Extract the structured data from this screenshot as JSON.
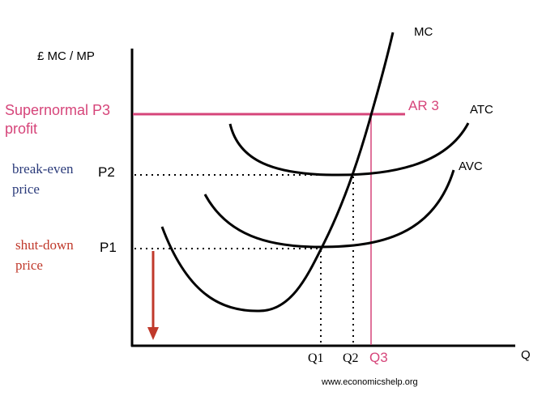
{
  "axes": {
    "y_label": "£ MC / MP",
    "x_label": "Q"
  },
  "curves": {
    "mc": "MC",
    "atc": "ATC",
    "avc": "AVC",
    "ar": "AR 3"
  },
  "prices": {
    "p3": {
      "label": "Supernormal P3",
      "note": "profit"
    },
    "p2": {
      "label": "P2",
      "note": [
        "break-even",
        "price"
      ]
    },
    "p1": {
      "label": "P1",
      "note": [
        "shut-down",
        "price"
      ]
    }
  },
  "quantities": [
    "Q1",
    "Q2",
    "Q3"
  ],
  "footer": "www.economicshelp.org"
}
